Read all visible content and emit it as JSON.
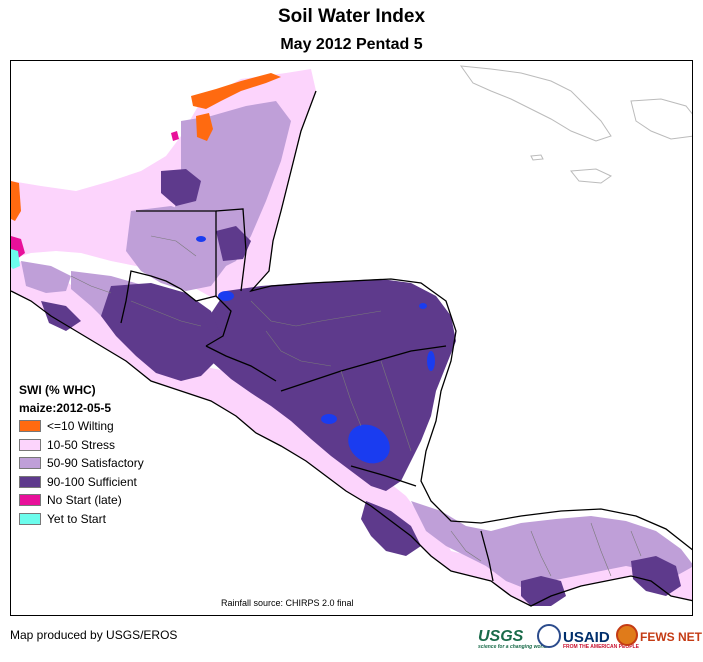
{
  "title": "Soil Water Index",
  "subtitle": "May 2012 Pentad 5",
  "legend": {
    "title": "SWI (% WHC)",
    "subtitle": "maize:2012-05-5",
    "items": [
      {
        "label": "<=10 Wilting",
        "color": "#ff6a10"
      },
      {
        "label": "10-50 Stress",
        "color": "#fcd4fc"
      },
      {
        "label": "50-90 Satisfactory",
        "color": "#bf9fd8"
      },
      {
        "label": "90-100 Sufficient",
        "color": "#5e3a8c"
      },
      {
        "label": "No Start (late)",
        "color": "#e8109a"
      },
      {
        "label": "Yet to Start",
        "color": "#6cfcec"
      }
    ]
  },
  "source_note": "Rainfall source: CHIRPS 2.0 final",
  "credit": "Map produced by USGS/EROS",
  "logos": {
    "usgs": "USGS",
    "usgs_tagline": "science for a changing world",
    "usaid": "USAID",
    "usaid_tagline": "FROM THE AMERICAN PEOPLE",
    "fews": "FEWS NET"
  },
  "colors": {
    "water_body": "#1a3cf0",
    "border": "#000000",
    "admin": "#7a7a7a",
    "coast_outline": "#bbbbbb"
  }
}
